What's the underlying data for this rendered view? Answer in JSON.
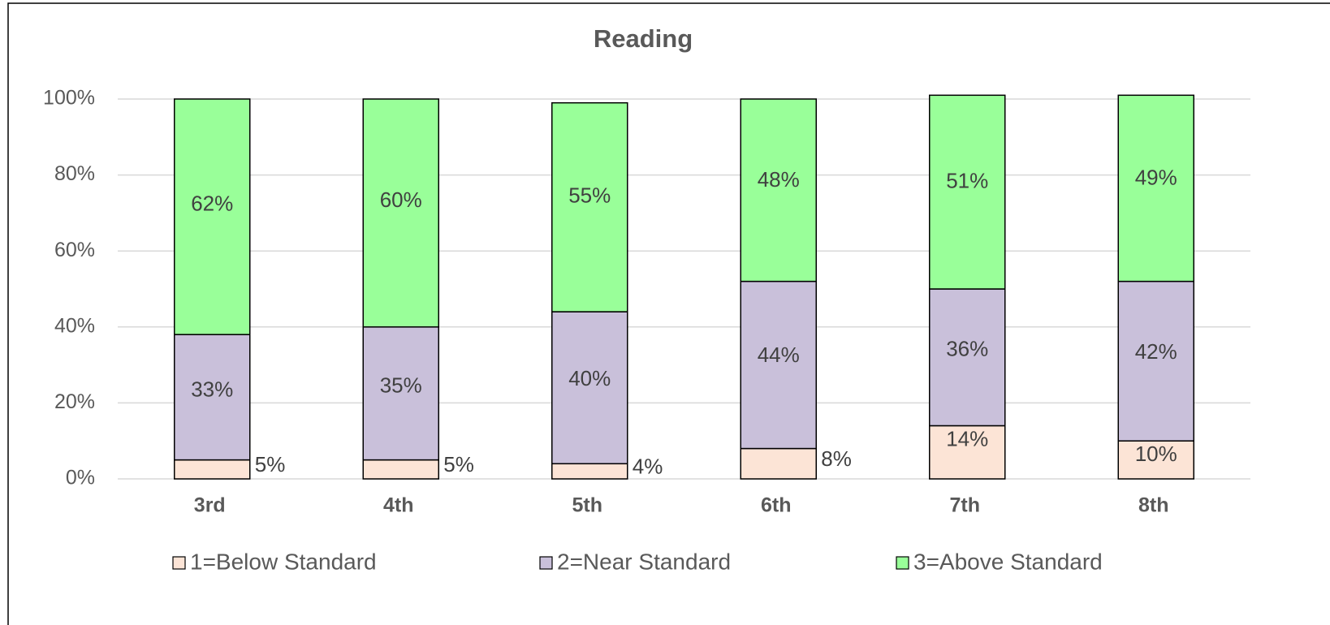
{
  "chart_data": {
    "type": "stacked_bar",
    "title": "Reading",
    "categories": [
      "3rd",
      "4th",
      "5th",
      "6th",
      "7th",
      "8th"
    ],
    "series": [
      {
        "name": "1=Below Standard",
        "color": "#fce4d6",
        "values": [
          5,
          5,
          4,
          8,
          14,
          10
        ],
        "value_labels": [
          "5%",
          "5%",
          "4%",
          "8%",
          "14%",
          "10%"
        ]
      },
      {
        "name": "2=Near Standard",
        "color": "#c9c0da",
        "values": [
          33,
          35,
          40,
          44,
          36,
          42
        ],
        "value_labels": [
          "33%",
          "35%",
          "40%",
          "44%",
          "36%",
          "42%"
        ]
      },
      {
        "name": "3=Above Standard",
        "color": "#99ff99",
        "values": [
          62,
          60,
          55,
          48,
          51,
          49
        ],
        "value_labels": [
          "62%",
          "60%",
          "55%",
          "48%",
          "51%",
          "49%"
        ]
      }
    ],
    "ylim": [
      0,
      100
    ],
    "yticks": [
      {
        "value": 0,
        "label": "0%"
      },
      {
        "value": 20,
        "label": "20%"
      },
      {
        "value": 40,
        "label": "40%"
      },
      {
        "value": 60,
        "label": "60%"
      },
      {
        "value": 80,
        "label": "80%"
      },
      {
        "value": 100,
        "label": "100%"
      }
    ],
    "grid": true,
    "legend": "bottom"
  }
}
